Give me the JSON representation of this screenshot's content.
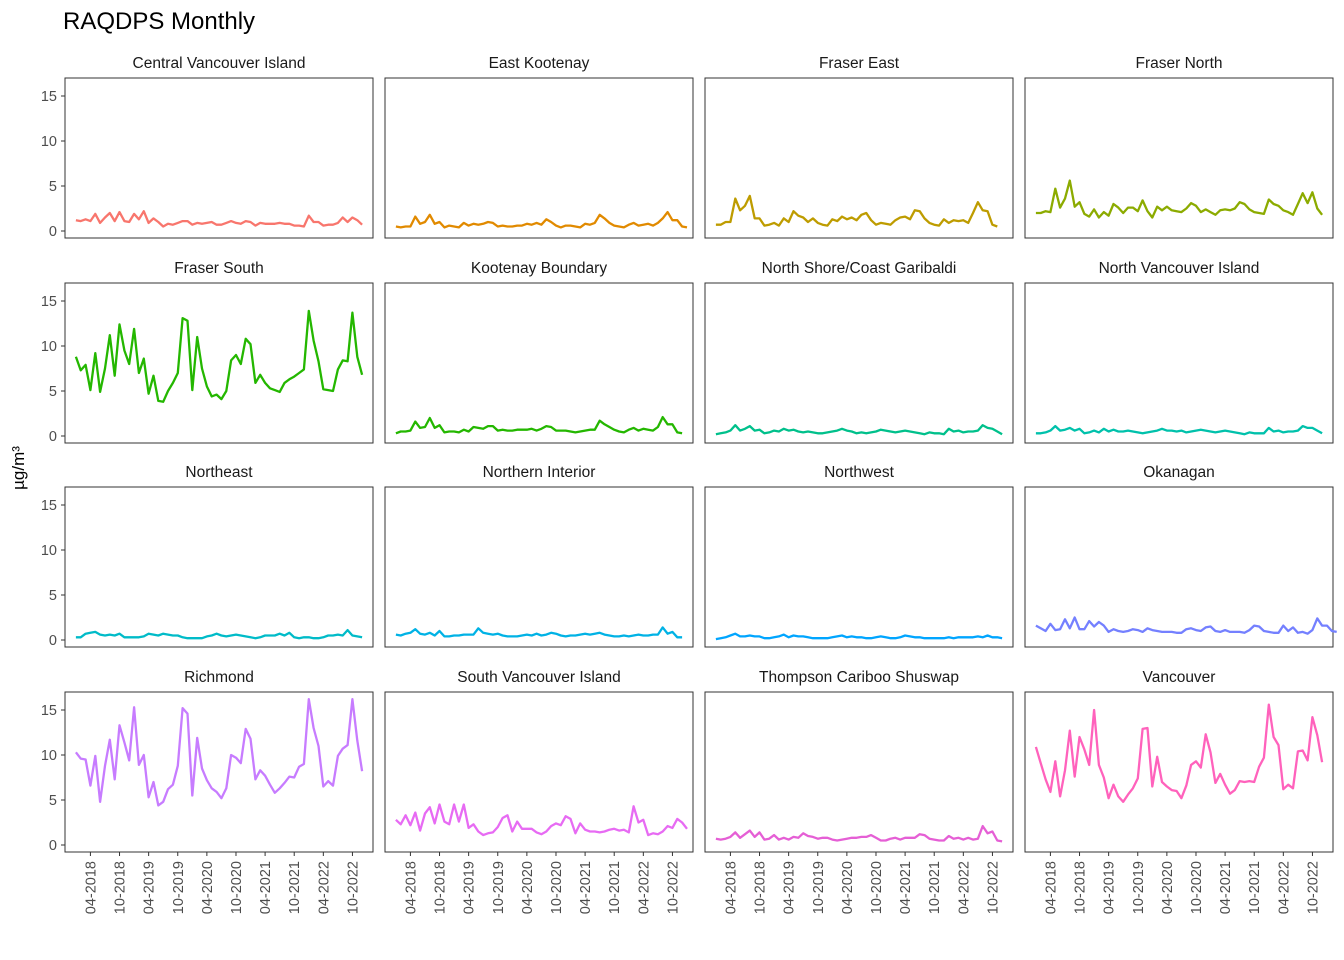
{
  "chart_data": {
    "type": "line",
    "title": "RAQDPS Monthly",
    "ylabel": "µg/m³",
    "xlabel": "",
    "ylim": [
      0,
      17
    ],
    "y_ticks": [
      0,
      5,
      10,
      15
    ],
    "x_tick_labels": [
      "04-2018",
      "10-2018",
      "04-2019",
      "10-2019",
      "04-2020",
      "10-2020",
      "04-2021",
      "10-2021",
      "04-2022",
      "10-2022"
    ],
    "x_tick_months": [
      3,
      9,
      15,
      21,
      27,
      33,
      39,
      45,
      51,
      57
    ],
    "x_range_months": [
      -1,
      60
    ],
    "x_note": "x = months since 01-2018 (index 0 = 01-2018)",
    "grid": false,
    "legend": "none",
    "layout": "facet 4x4",
    "panels": [
      {
        "name": "Central Vancouver Island",
        "color": "#F8766D",
        "values": [
          1.2,
          1.1,
          1.3,
          1.1,
          1.9,
          0.9,
          1.5,
          2.0,
          1.1,
          2.1,
          1.1,
          1.0,
          1.9,
          1.3,
          2.2,
          0.9,
          1.4,
          1.0,
          0.5,
          0.8,
          0.7,
          0.9,
          1.1,
          1.1,
          0.7,
          0.9,
          0.8,
          0.9,
          1.0,
          0.7,
          0.7,
          0.9,
          1.1,
          0.9,
          0.8,
          1.1,
          1.0,
          0.6,
          0.9,
          0.8,
          0.8,
          0.8,
          0.9,
          0.8,
          0.8,
          0.6,
          0.6,
          0.5,
          1.7,
          1.0,
          1.0,
          0.6,
          0.7,
          0.7,
          0.9,
          1.5,
          1.0,
          1.5,
          1.2,
          0.7
        ]
      },
      {
        "name": "East Kootenay",
        "color": "#E18A00",
        "values": [
          0.5,
          0.4,
          0.5,
          0.5,
          1.6,
          0.8,
          1.0,
          1.8,
          0.8,
          1.0,
          0.4,
          0.6,
          0.5,
          0.4,
          0.9,
          0.6,
          0.8,
          0.7,
          0.8,
          1.0,
          0.9,
          0.5,
          0.6,
          0.5,
          0.5,
          0.6,
          0.6,
          0.8,
          0.7,
          0.9,
          0.7,
          1.3,
          1.0,
          0.6,
          0.4,
          0.6,
          0.6,
          0.5,
          0.4,
          0.8,
          0.7,
          0.9,
          1.8,
          1.4,
          0.9,
          0.6,
          0.5,
          0.4,
          0.7,
          0.9,
          0.6,
          0.7,
          0.8,
          0.6,
          0.9,
          1.4,
          2.1,
          1.2,
          1.2,
          0.5,
          0.4
        ]
      },
      {
        "name": "Fraser East",
        "color": "#BE9C00",
        "values": [
          0.7,
          0.7,
          1.0,
          1.0,
          3.6,
          2.3,
          2.8,
          3.9,
          1.4,
          1.4,
          0.6,
          0.7,
          0.9,
          0.6,
          1.4,
          1.0,
          2.2,
          1.7,
          1.5,
          1.0,
          1.4,
          0.9,
          0.7,
          0.6,
          1.3,
          1.1,
          1.6,
          1.3,
          1.5,
          1.2,
          1.8,
          2.0,
          1.2,
          0.7,
          0.9,
          0.8,
          0.7,
          1.2,
          1.5,
          1.6,
          1.3,
          2.3,
          2.2,
          1.4,
          0.9,
          0.7,
          0.6,
          1.3,
          0.9,
          1.2,
          1.1,
          1.2,
          0.9,
          2.0,
          3.2,
          2.3,
          2.2,
          0.7,
          0.5
        ]
      },
      {
        "name": "Fraser North",
        "color": "#8CAB00",
        "values": [
          2.0,
          2.0,
          2.2,
          2.1,
          4.7,
          2.6,
          3.6,
          5.6,
          2.7,
          3.2,
          1.9,
          1.6,
          2.4,
          1.5,
          2.1,
          1.7,
          3.0,
          2.6,
          2.0,
          2.6,
          2.6,
          2.2,
          3.4,
          2.2,
          1.5,
          2.7,
          2.3,
          2.7,
          2.3,
          2.2,
          2.1,
          2.5,
          3.1,
          2.8,
          2.1,
          2.4,
          2.1,
          1.8,
          2.3,
          2.4,
          2.3,
          2.5,
          3.2,
          3.0,
          2.4,
          2.1,
          2.0,
          1.9,
          3.5,
          3.0,
          2.8,
          2.3,
          2.1,
          1.8,
          3.0,
          4.2,
          3.1,
          4.3,
          2.5,
          1.8
        ]
      },
      {
        "name": "Fraser South",
        "color": "#24B700",
        "values": [
          8.8,
          7.3,
          7.9,
          5.1,
          9.2,
          4.9,
          7.5,
          11.2,
          6.7,
          12.4,
          9.5,
          8.0,
          11.9,
          7.0,
          8.6,
          4.7,
          6.7,
          3.9,
          3.8,
          5.0,
          5.9,
          7.0,
          13.1,
          12.8,
          5.1,
          11.0,
          7.5,
          5.5,
          4.4,
          4.6,
          4.1,
          5.0,
          8.4,
          9.0,
          8.0,
          10.8,
          10.2,
          5.9,
          6.8,
          5.9,
          5.3,
          5.1,
          4.9,
          5.9,
          6.3,
          6.6,
          7.0,
          7.4,
          13.9,
          10.6,
          8.3,
          5.2,
          5.1,
          5.0,
          7.4,
          8.4,
          8.3,
          13.7,
          8.8,
          6.8
        ]
      },
      {
        "name": "Kootenay Boundary",
        "color": "#00BE70",
        "color_actual": "#24B700",
        "values": [
          0.3,
          0.5,
          0.5,
          0.6,
          1.6,
          0.9,
          1.0,
          2.0,
          0.9,
          1.2,
          0.4,
          0.5,
          0.5,
          0.4,
          0.7,
          0.5,
          1.0,
          0.9,
          0.8,
          1.1,
          1.1,
          0.6,
          0.7,
          0.6,
          0.6,
          0.7,
          0.7,
          0.7,
          0.8,
          0.6,
          0.8,
          1.1,
          1.0,
          0.6,
          0.6,
          0.6,
          0.5,
          0.4,
          0.5,
          0.6,
          0.7,
          0.7,
          1.7,
          1.3,
          1.0,
          0.7,
          0.5,
          0.4,
          0.7,
          0.9,
          0.6,
          0.8,
          0.7,
          0.6,
          1.0,
          2.1,
          1.3,
          1.3,
          0.4,
          0.3
        ]
      },
      {
        "name": "North Shore/Coast Garibaldi",
        "color": "#00C08B",
        "values": [
          0.2,
          0.3,
          0.4,
          0.6,
          1.2,
          0.6,
          0.8,
          1.1,
          0.6,
          0.7,
          0.3,
          0.4,
          0.6,
          0.5,
          0.8,
          0.6,
          0.7,
          0.5,
          0.4,
          0.5,
          0.4,
          0.3,
          0.3,
          0.4,
          0.5,
          0.6,
          0.8,
          0.6,
          0.5,
          0.3,
          0.4,
          0.3,
          0.4,
          0.5,
          0.7,
          0.6,
          0.5,
          0.4,
          0.5,
          0.6,
          0.5,
          0.4,
          0.3,
          0.2,
          0.4,
          0.3,
          0.3,
          0.2,
          0.8,
          0.5,
          0.6,
          0.4,
          0.5,
          0.5,
          0.6,
          1.2,
          0.9,
          0.8,
          0.5,
          0.2
        ]
      },
      {
        "name": "North Vancouver Island",
        "color": "#00C1AB",
        "values": [
          0.3,
          0.3,
          0.4,
          0.6,
          1.1,
          0.6,
          0.7,
          0.9,
          0.6,
          0.8,
          0.3,
          0.4,
          0.6,
          0.4,
          0.8,
          0.5,
          0.7,
          0.5,
          0.5,
          0.6,
          0.5,
          0.4,
          0.3,
          0.4,
          0.5,
          0.6,
          0.8,
          0.6,
          0.6,
          0.5,
          0.6,
          0.4,
          0.5,
          0.6,
          0.7,
          0.6,
          0.5,
          0.4,
          0.5,
          0.6,
          0.5,
          0.4,
          0.3,
          0.2,
          0.4,
          0.3,
          0.3,
          0.3,
          0.9,
          0.5,
          0.6,
          0.4,
          0.5,
          0.5,
          0.6,
          1.1,
          0.9,
          0.9,
          0.6,
          0.3
        ]
      },
      {
        "name": "Northeast",
        "color": "#00BBC8",
        "values": [
          0.3,
          0.3,
          0.7,
          0.8,
          0.9,
          0.6,
          0.5,
          0.6,
          0.5,
          0.7,
          0.3,
          0.3,
          0.3,
          0.3,
          0.4,
          0.7,
          0.6,
          0.5,
          0.7,
          0.6,
          0.5,
          0.5,
          0.3,
          0.2,
          0.2,
          0.2,
          0.2,
          0.4,
          0.5,
          0.7,
          0.5,
          0.4,
          0.5,
          0.6,
          0.5,
          0.4,
          0.3,
          0.2,
          0.3,
          0.5,
          0.5,
          0.5,
          0.7,
          0.5,
          0.8,
          0.3,
          0.2,
          0.3,
          0.3,
          0.2,
          0.2,
          0.3,
          0.5,
          0.5,
          0.6,
          0.5,
          1.1,
          0.5,
          0.4,
          0.3
        ]
      },
      {
        "name": "Northern Interior",
        "color": "#00B2E5",
        "values": [
          0.6,
          0.5,
          0.7,
          0.8,
          1.2,
          0.7,
          0.6,
          0.8,
          0.5,
          1.0,
          0.4,
          0.4,
          0.5,
          0.5,
          0.6,
          0.6,
          0.6,
          1.3,
          0.8,
          0.7,
          0.6,
          0.7,
          0.5,
          0.4,
          0.4,
          0.4,
          0.5,
          0.6,
          0.5,
          0.7,
          0.5,
          0.6,
          0.8,
          0.7,
          0.5,
          0.4,
          0.5,
          0.5,
          0.6,
          0.7,
          0.6,
          0.7,
          0.8,
          0.6,
          0.5,
          0.4,
          0.4,
          0.5,
          0.4,
          0.5,
          0.6,
          0.5,
          0.5,
          0.6,
          0.6,
          1.4,
          0.7,
          0.9,
          0.3,
          0.3
        ]
      },
      {
        "name": "Northwest",
        "color": "#00A5FF",
        "values": [
          0.1,
          0.2,
          0.3,
          0.5,
          0.7,
          0.4,
          0.4,
          0.5,
          0.4,
          0.4,
          0.2,
          0.2,
          0.3,
          0.4,
          0.6,
          0.3,
          0.5,
          0.4,
          0.4,
          0.3,
          0.2,
          0.2,
          0.2,
          0.2,
          0.3,
          0.4,
          0.5,
          0.3,
          0.4,
          0.3,
          0.3,
          0.2,
          0.2,
          0.3,
          0.4,
          0.3,
          0.2,
          0.2,
          0.3,
          0.5,
          0.4,
          0.3,
          0.3,
          0.2,
          0.2,
          0.2,
          0.2,
          0.2,
          0.3,
          0.2,
          0.3,
          0.3,
          0.3,
          0.3,
          0.4,
          0.3,
          0.5,
          0.3,
          0.3,
          0.2
        ]
      },
      {
        "name": "Okanagan",
        "color": "#8A8AFF",
        "color_actual": "#7480FF",
        "values": [
          1.6,
          1.3,
          1.0,
          1.8,
          1.1,
          1.2,
          2.3,
          1.3,
          2.5,
          1.2,
          1.2,
          2.1,
          1.5,
          2.0,
          1.6,
          0.9,
          1.2,
          1.0,
          0.9,
          1.0,
          1.2,
          1.1,
          0.9,
          1.3,
          1.1,
          1.0,
          0.9,
          0.9,
          0.9,
          0.8,
          0.8,
          1.2,
          1.3,
          1.1,
          1.0,
          1.4,
          1.5,
          1.0,
          0.9,
          1.1,
          0.9,
          0.9,
          0.9,
          0.8,
          1.1,
          1.6,
          1.5,
          1.0,
          0.9,
          0.8,
          0.8,
          1.6,
          1.0,
          1.4,
          0.8,
          0.9,
          0.7,
          1.1,
          2.4,
          1.6,
          1.6,
          1.0,
          0.9
        ]
      },
      {
        "name": "Richmond",
        "color": "#C77CFF",
        "values": [
          10.3,
          9.6,
          9.5,
          6.6,
          9.9,
          4.8,
          8.8,
          11.7,
          7.3,
          13.3,
          11.4,
          9.4,
          15.3,
          8.9,
          10.0,
          5.3,
          7.0,
          4.4,
          4.8,
          6.2,
          6.7,
          8.8,
          15.2,
          14.6,
          5.5,
          11.9,
          8.5,
          7.2,
          6.3,
          5.9,
          5.2,
          6.3,
          10.0,
          9.7,
          9.1,
          12.9,
          11.8,
          7.3,
          8.3,
          7.7,
          6.7,
          5.8,
          6.3,
          6.9,
          7.6,
          7.5,
          8.7,
          9.0,
          16.2,
          13.0,
          11.0,
          6.5,
          7.1,
          6.6,
          9.9,
          10.7,
          11.1,
          16.2,
          11.6,
          8.2
        ]
      },
      {
        "name": "South Vancouver Island",
        "color": "#E76BF3",
        "values": [
          2.8,
          2.3,
          3.3,
          2.2,
          3.6,
          1.6,
          3.5,
          4.2,
          2.4,
          4.5,
          2.6,
          2.3,
          4.5,
          2.6,
          4.5,
          1.9,
          2.3,
          1.5,
          1.1,
          1.3,
          1.4,
          2.0,
          3.0,
          3.3,
          1.5,
          2.6,
          1.8,
          1.8,
          1.8,
          1.4,
          1.2,
          1.5,
          2.1,
          2.4,
          2.2,
          3.2,
          2.9,
          1.3,
          2.4,
          1.7,
          1.5,
          1.5,
          1.4,
          1.5,
          1.7,
          1.8,
          1.6,
          1.7,
          1.4,
          4.3,
          2.5,
          2.8,
          1.1,
          1.3,
          1.2,
          1.5,
          2.1,
          1.9,
          2.9,
          2.5,
          1.8
        ]
      },
      {
        "name": "Thompson Cariboo Shuswap",
        "color": "#FA62DB",
        "color_actual": "#E55FD5",
        "values": [
          0.7,
          0.6,
          0.7,
          0.9,
          1.4,
          0.8,
          1.2,
          1.6,
          0.9,
          1.4,
          0.6,
          0.7,
          1.1,
          0.6,
          0.8,
          0.6,
          0.9,
          0.8,
          1.3,
          1.0,
          0.9,
          0.7,
          0.8,
          0.8,
          0.6,
          0.5,
          0.6,
          0.7,
          0.8,
          0.8,
          0.9,
          0.9,
          1.1,
          0.8,
          0.5,
          0.5,
          0.7,
          0.8,
          0.6,
          0.8,
          0.8,
          0.8,
          1.2,
          1.1,
          0.7,
          0.6,
          0.5,
          0.5,
          1.0,
          0.7,
          0.8,
          0.6,
          0.8,
          0.6,
          0.7,
          2.1,
          1.3,
          1.5,
          0.5,
          0.4
        ]
      },
      {
        "name": "Vancouver",
        "color": "#FF62BC",
        "values": [
          10.9,
          9.1,
          7.3,
          5.9,
          9.3,
          5.4,
          8.3,
          12.7,
          7.6,
          12.0,
          10.6,
          8.9,
          15.0,
          8.9,
          7.5,
          5.2,
          6.7,
          5.4,
          4.8,
          5.6,
          6.3,
          7.4,
          12.9,
          13.0,
          6.5,
          9.8,
          7.0,
          6.5,
          6.1,
          6.0,
          5.2,
          6.6,
          8.9,
          9.3,
          8.6,
          12.3,
          10.3,
          6.9,
          7.9,
          6.7,
          5.7,
          6.1,
          7.1,
          7.0,
          7.1,
          7.0,
          8.7,
          9.7,
          15.6,
          12.0,
          11.1,
          6.2,
          6.7,
          6.3,
          10.4,
          10.5,
          9.4,
          14.2,
          12.2,
          9.2
        ]
      }
    ]
  }
}
